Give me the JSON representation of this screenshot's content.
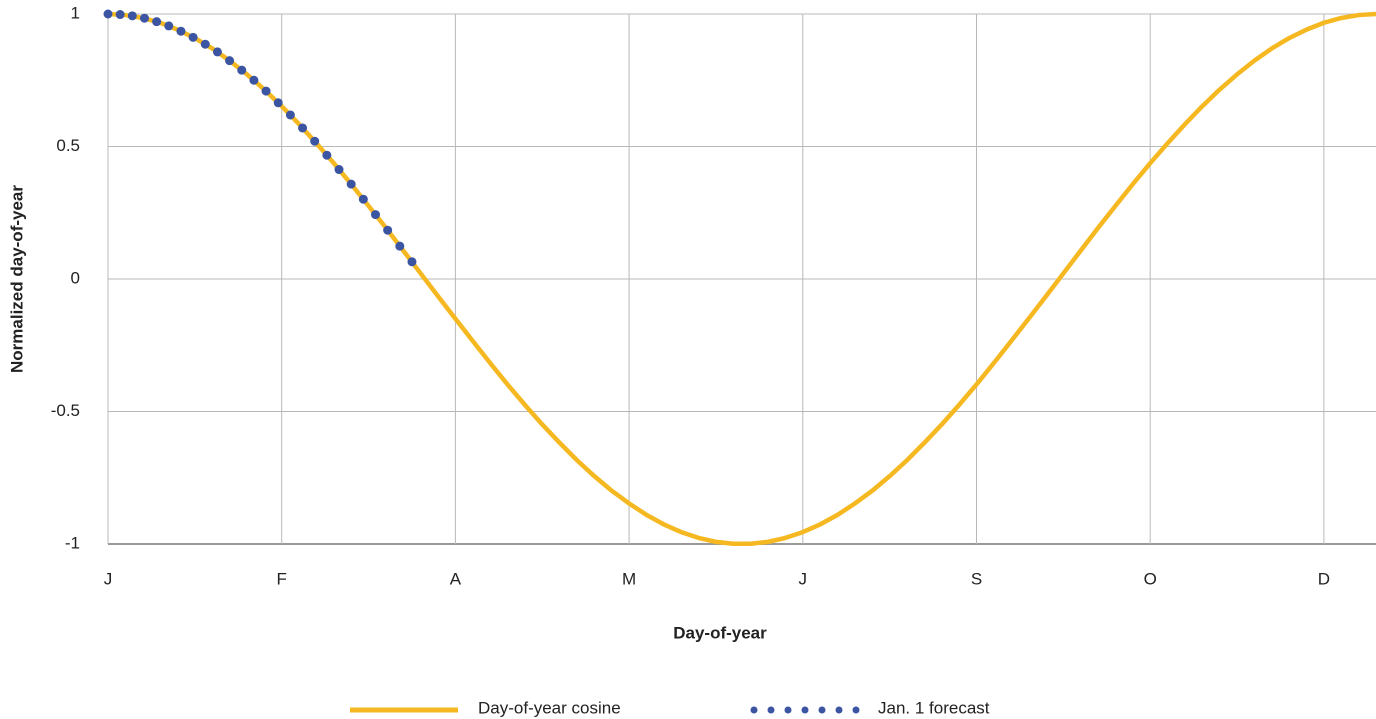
{
  "chart_data": {
    "type": "line",
    "x_label": "Day-of-year",
    "y_label": "Normalized day-of-year",
    "xlim": [
      0,
      365
    ],
    "xticks": [
      {
        "value": 0,
        "label": "J"
      },
      {
        "value": 50,
        "label": "F"
      },
      {
        "value": 100,
        "label": "A"
      },
      {
        "value": 150,
        "label": "M"
      },
      {
        "value": 200,
        "label": "J"
      },
      {
        "value": 250,
        "label": "S"
      },
      {
        "value": 300,
        "label": "O"
      },
      {
        "value": 350,
        "label": "D"
      }
    ],
    "ylim": [
      -1,
      1
    ],
    "yticks": [
      1,
      0.5,
      0,
      -0.5,
      -1
    ],
    "grid": true,
    "legend": "bottom",
    "series": [
      {
        "name": "Day-of-year cosine",
        "color": "#f5b820",
        "style": "solid",
        "x": [
          0,
          5,
          10,
          15,
          20,
          25,
          30,
          35,
          40,
          45,
          50,
          55,
          60,
          65,
          70,
          75,
          80,
          85,
          90,
          95,
          100,
          105,
          110,
          115,
          120,
          125,
          130,
          135,
          140,
          145,
          150,
          155,
          160,
          165,
          170,
          175,
          180,
          185,
          190,
          195,
          200,
          205,
          210,
          215,
          220,
          225,
          230,
          235,
          240,
          245,
          250,
          255,
          260,
          265,
          270,
          275,
          280,
          285,
          290,
          295,
          300,
          305,
          310,
          315,
          320,
          325,
          330,
          335,
          340,
          345,
          350,
          355,
          360,
          365
        ],
        "values": [
          1,
          0.996,
          0.985,
          0.967,
          0.941,
          0.909,
          0.87,
          0.824,
          0.772,
          0.715,
          0.652,
          0.584,
          0.512,
          0.437,
          0.358,
          0.276,
          0.193,
          0.107,
          0.021,
          -0.065,
          -0.15,
          -0.234,
          -0.317,
          -0.398,
          -0.475,
          -0.549,
          -0.618,
          -0.684,
          -0.744,
          -0.799,
          -0.847,
          -0.89,
          -0.926,
          -0.955,
          -0.977,
          -0.992,
          -0.999,
          -0.999,
          -0.992,
          -0.977,
          -0.955,
          -0.926,
          -0.89,
          -0.847,
          -0.799,
          -0.744,
          -0.684,
          -0.618,
          -0.549,
          -0.475,
          -0.398,
          -0.317,
          -0.234,
          -0.15,
          -0.065,
          0.021,
          0.107,
          0.193,
          0.276,
          0.358,
          0.437,
          0.512,
          0.584,
          0.652,
          0.715,
          0.772,
          0.824,
          0.87,
          0.909,
          0.941,
          0.967,
          0.985,
          0.996,
          1
        ]
      },
      {
        "name": "Jan. 1 forecast",
        "color": "#3b55a3",
        "style": "dots",
        "x": [
          0,
          3.5,
          7,
          10.5,
          14,
          17.5,
          21,
          24.5,
          28,
          31.5,
          35,
          38.5,
          42,
          45.5,
          49,
          52.5,
          56,
          59.5,
          63,
          66.5,
          70,
          73.5,
          77,
          80.5,
          84,
          87.5
        ],
        "values": [
          1,
          0.998,
          0.993,
          0.984,
          0.971,
          0.955,
          0.935,
          0.912,
          0.886,
          0.857,
          0.824,
          0.788,
          0.75,
          0.709,
          0.665,
          0.619,
          0.57,
          0.52,
          0.467,
          0.413,
          0.358,
          0.301,
          0.243,
          0.184,
          0.124,
          0.065
        ]
      }
    ]
  }
}
